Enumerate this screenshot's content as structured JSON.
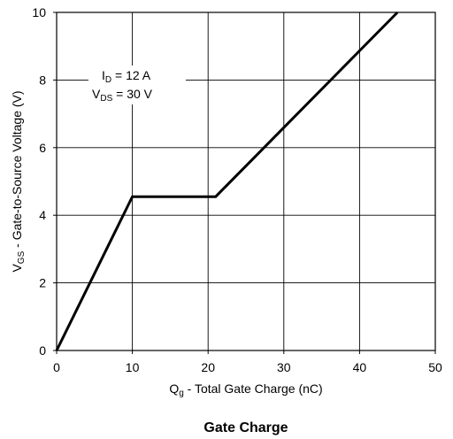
{
  "chart_data": {
    "type": "line",
    "title": "Gate Charge",
    "xlabel": {
      "symbol": "Q",
      "subscript": "g",
      "text": " - Total Gate Charge (nC)"
    },
    "ylabel": {
      "symbol": "V",
      "subscript": "GS",
      "text": " - Gate-to-Source Voltage (V)"
    },
    "xlim": [
      0,
      50
    ],
    "ylim": [
      0,
      10
    ],
    "xticks": [
      0,
      10,
      20,
      30,
      40,
      50
    ],
    "yticks": [
      0,
      2,
      4,
      6,
      8,
      10
    ],
    "xtick_labels": [
      "0",
      "10",
      "20",
      "30",
      "40",
      "50"
    ],
    "ytick_labels": [
      "0",
      "2",
      "4",
      "6",
      "8",
      "10"
    ],
    "grid": true,
    "annotations": [
      {
        "symbol": "I",
        "subscript": "D",
        "text": " = 12 A"
      },
      {
        "symbol": "V",
        "subscript": "DS",
        "text": " = 30 V"
      }
    ],
    "series": [
      {
        "x": [
          0,
          10,
          21,
          45
        ],
        "y": [
          0,
          4.55,
          4.55,
          10
        ],
        "color": "#000000"
      }
    ]
  }
}
